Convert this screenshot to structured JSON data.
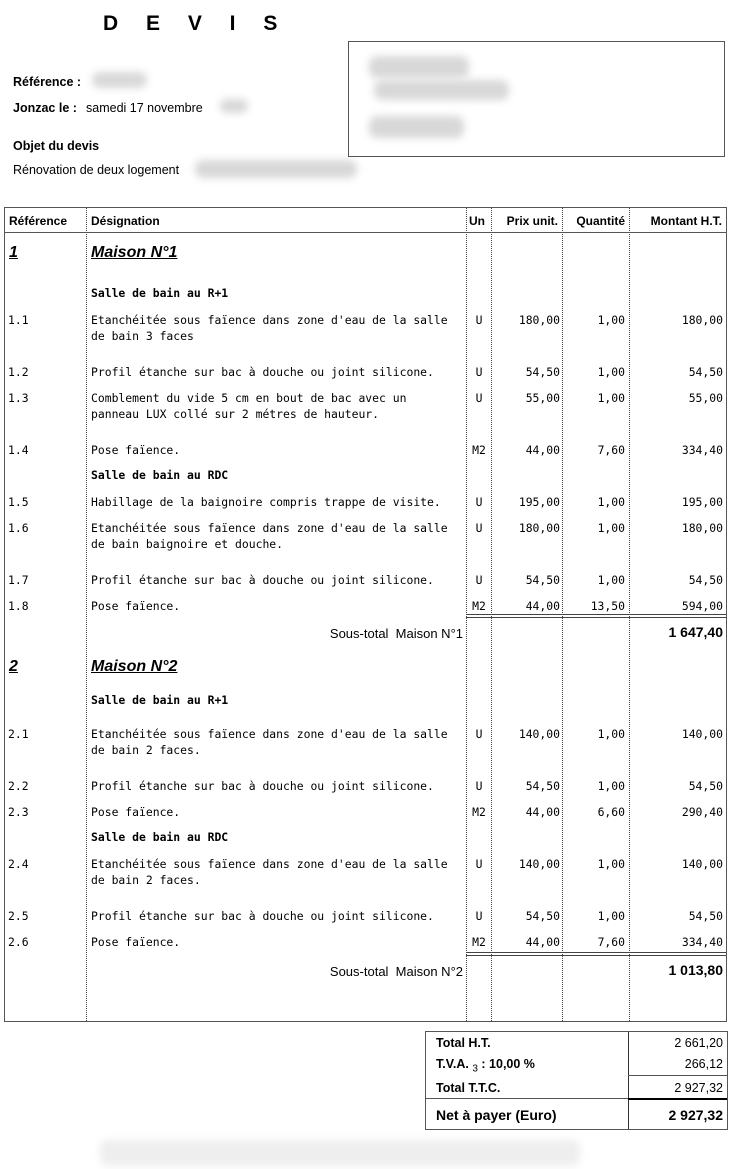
{
  "header": {
    "title": "D E V I S",
    "reference_label": "Référence  :",
    "date_label": "Jonzac  le  :",
    "date_value": "samedi 17 novembre",
    "object_label": "Objet du devis",
    "object_value": "Rénovation de deux logement"
  },
  "table": {
    "columns": [
      "Référence",
      "Désignation",
      "Un",
      "Prix unit.",
      "Quantité",
      "Montant H.T."
    ],
    "rows": [
      {
        "type": "section",
        "ref": "1",
        "label": "Maison N°1"
      },
      {
        "type": "sub",
        "label": "Salle de bain au R+1"
      },
      {
        "type": "item",
        "ref": "1.1",
        "label": "Etanchéitée sous faïence dans zone d'eau de la salle\nde bain 3 faces",
        "un": "U",
        "pu": "180,00",
        "qty": "1,00",
        "amt": "180,00"
      },
      {
        "type": "item",
        "ref": "1.2",
        "label": "Profil étanche sur bac à douche ou joint silicone.",
        "un": "U",
        "pu": "54,50",
        "qty": "1,00",
        "amt": "54,50"
      },
      {
        "type": "item",
        "ref": "1.3",
        "label": "Comblement du vide 5 cm en bout de bac avec un\npanneau LUX collé sur 2 métres de hauteur.",
        "un": "U",
        "pu": "55,00",
        "qty": "1,00",
        "amt": "55,00"
      },
      {
        "type": "item",
        "ref": "1.4",
        "label": "Pose faïence.",
        "un": "M2",
        "pu": "44,00",
        "qty": "7,60",
        "amt": "334,40"
      },
      {
        "type": "sub",
        "label": "Salle de bain au RDC"
      },
      {
        "type": "item",
        "ref": "1.5",
        "label": "Habillage de la baignoire compris trappe de visite.",
        "un": "U",
        "pu": "195,00",
        "qty": "1,00",
        "amt": "195,00"
      },
      {
        "type": "item",
        "ref": "1.6",
        "label": "Etanchéitée sous faïence dans zone d'eau de la salle\nde bain baignoire et douche.",
        "un": "U",
        "pu": "180,00",
        "qty": "1,00",
        "amt": "180,00"
      },
      {
        "type": "item",
        "ref": "1.7",
        "label": "Profil étanche sur bac à douche ou joint silicone.",
        "un": "U",
        "pu": "54,50",
        "qty": "1,00",
        "amt": "54,50"
      },
      {
        "type": "item",
        "ref": "1.8",
        "label": "Pose faïence.",
        "un": "M2",
        "pu": "44,00",
        "qty": "13,50",
        "amt": "594,00"
      },
      {
        "type": "subtotal",
        "label": "Sous-total  Maison N°1",
        "amt": "1 647,40"
      },
      {
        "type": "section",
        "ref": "2",
        "label": "Maison N°2"
      },
      {
        "type": "sub",
        "label": "Salle de bain au R+1"
      },
      {
        "type": "item",
        "ref": "2.1",
        "label": "Etanchéitée sous faïence dans zone d'eau de la salle\nde bain 2 faces.",
        "un": "U",
        "pu": "140,00",
        "qty": "1,00",
        "amt": "140,00"
      },
      {
        "type": "item",
        "ref": "2.2",
        "label": "Profil étanche sur bac à douche ou joint silicone.",
        "un": "U",
        "pu": "54,50",
        "qty": "1,00",
        "amt": "54,50"
      },
      {
        "type": "item",
        "ref": "2.3",
        "label": "Pose faïence.",
        "un": "M2",
        "pu": "44,00",
        "qty": "6,60",
        "amt": "290,40"
      },
      {
        "type": "sub",
        "label": "Salle de bain au RDC"
      },
      {
        "type": "item",
        "ref": "2.4",
        "label": "Etanchéitée sous faïence dans zone d'eau de la salle\nde bain 2 faces.",
        "un": "U",
        "pu": "140,00",
        "qty": "1,00",
        "amt": "140,00"
      },
      {
        "type": "item",
        "ref": "2.5",
        "label": "Profil étanche sur bac à douche ou joint silicone.",
        "un": "U",
        "pu": "54,50",
        "qty": "1,00",
        "amt": "54,50"
      },
      {
        "type": "item",
        "ref": "2.6",
        "label": "Pose faïence.",
        "un": "M2",
        "pu": "44,00",
        "qty": "7,60",
        "amt": "334,40"
      },
      {
        "type": "subtotal",
        "label": "Sous-total  Maison N°2",
        "amt": "1 013,80"
      }
    ]
  },
  "totals": {
    "ht_label": "Total H.T.",
    "ht": "2 661,20",
    "tva_label": "T.V.A.",
    "tva_index": "3",
    "tva_rate": ": 10,00 %",
    "tva": "266,12",
    "ttc_label": "Total T.T.C.",
    "ttc": "2 927,32",
    "net_label": "Net à payer (Euro)",
    "net": "2 927,32"
  }
}
